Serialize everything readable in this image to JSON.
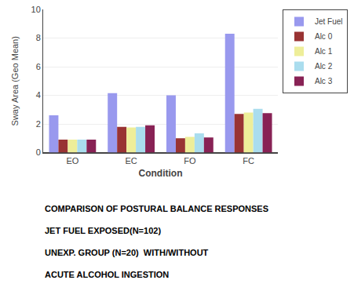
{
  "chart_data": {
    "type": "bar",
    "categories": [
      "EO",
      "EC",
      "FO",
      "FC"
    ],
    "series": [
      {
        "name": "Jet Fuel",
        "color": "#9999ee",
        "values": [
          2.6,
          4.15,
          4.0,
          8.3
        ]
      },
      {
        "name": "Alc 0",
        "color": "#993333",
        "values": [
          0.9,
          1.8,
          1.0,
          2.7
        ]
      },
      {
        "name": "Alc 1",
        "color": "#eeee99",
        "values": [
          0.9,
          1.75,
          1.1,
          2.8
        ]
      },
      {
        "name": "Alc 2",
        "color": "#aaddee",
        "values": [
          0.9,
          1.8,
          1.35,
          3.05
        ]
      },
      {
        "name": "Alc 3",
        "color": "#882255",
        "values": [
          0.9,
          1.9,
          1.05,
          2.75
        ]
      }
    ],
    "xlabel": "Condition",
    "ylabel": "Sway Area (Geo Mean)",
    "ylim": [
      0,
      10
    ],
    "yticks": [
      0,
      2,
      4,
      6,
      8,
      10
    ],
    "grid": true,
    "legend": "right",
    "annotations": [
      "COMPARISON OF POSTURAL BALANCE RESPONSES",
      "JET FUEL EXPOSED(N=102)",
      "UNEXP. GROUP (N=20)  WITH/WITHOUT",
      "ACUTE ALCOHOL INGESTION"
    ]
  }
}
